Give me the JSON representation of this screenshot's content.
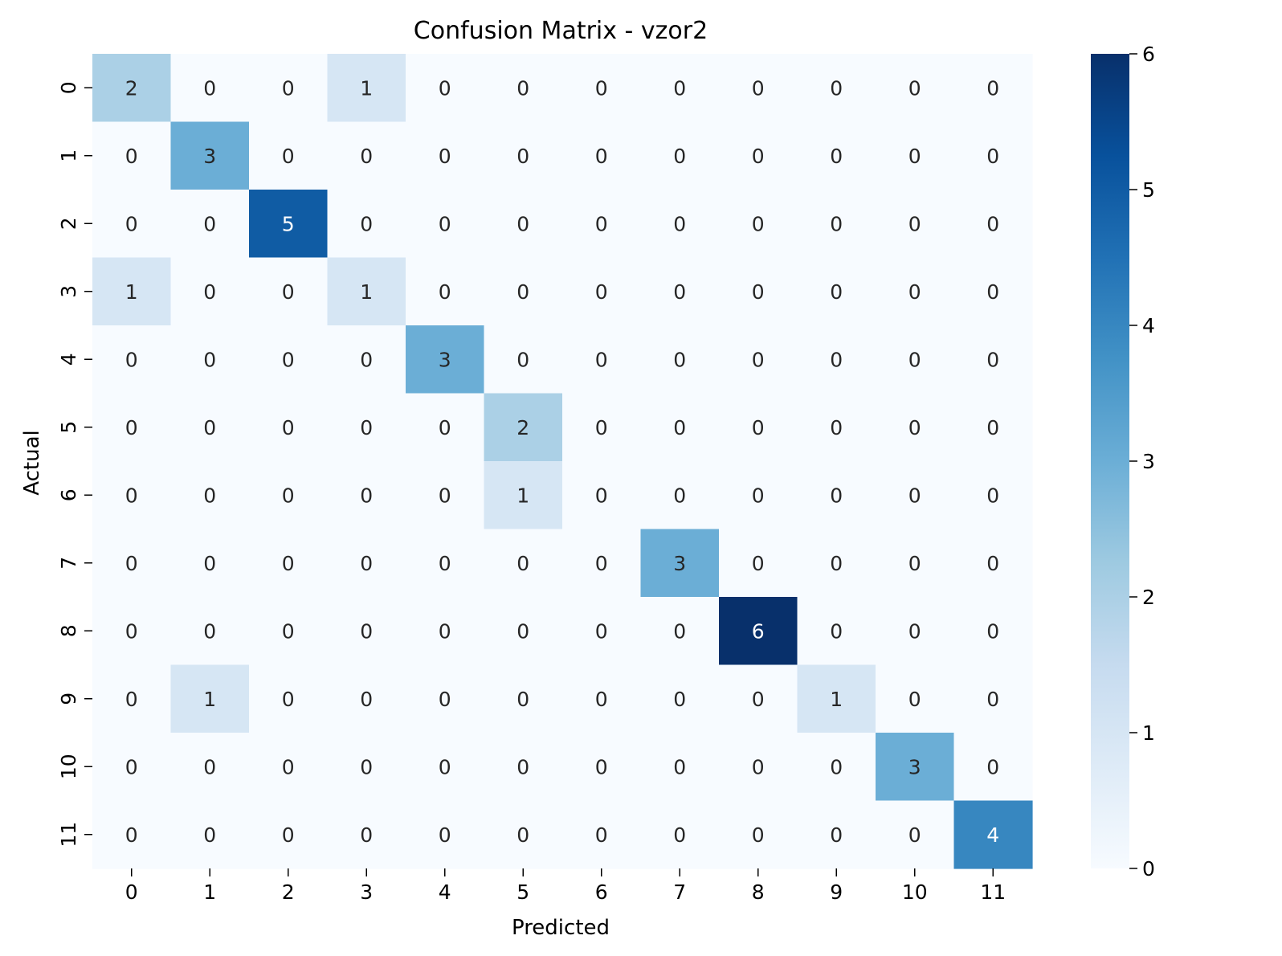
{
  "chart_data": {
    "type": "heatmap",
    "title": "Confusion Matrix - vzor2",
    "xlabel": "Predicted",
    "ylabel": "Actual",
    "x_categories": [
      "0",
      "1",
      "2",
      "3",
      "4",
      "5",
      "6",
      "7",
      "8",
      "9",
      "10",
      "11"
    ],
    "y_categories": [
      "0",
      "1",
      "2",
      "3",
      "4",
      "5",
      "6",
      "7",
      "8",
      "9",
      "10",
      "11"
    ],
    "matrix": [
      [
        2,
        0,
        0,
        1,
        0,
        0,
        0,
        0,
        0,
        0,
        0,
        0
      ],
      [
        0,
        3,
        0,
        0,
        0,
        0,
        0,
        0,
        0,
        0,
        0,
        0
      ],
      [
        0,
        0,
        5,
        0,
        0,
        0,
        0,
        0,
        0,
        0,
        0,
        0
      ],
      [
        1,
        0,
        0,
        1,
        0,
        0,
        0,
        0,
        0,
        0,
        0,
        0
      ],
      [
        0,
        0,
        0,
        0,
        3,
        0,
        0,
        0,
        0,
        0,
        0,
        0
      ],
      [
        0,
        0,
        0,
        0,
        0,
        2,
        0,
        0,
        0,
        0,
        0,
        0
      ],
      [
        0,
        0,
        0,
        0,
        0,
        1,
        0,
        0,
        0,
        0,
        0,
        0
      ],
      [
        0,
        0,
        0,
        0,
        0,
        0,
        0,
        3,
        0,
        0,
        0,
        0
      ],
      [
        0,
        0,
        0,
        0,
        0,
        0,
        0,
        0,
        6,
        0,
        0,
        0
      ],
      [
        0,
        1,
        0,
        0,
        0,
        0,
        0,
        0,
        0,
        1,
        0,
        0
      ],
      [
        0,
        0,
        0,
        0,
        0,
        0,
        0,
        0,
        0,
        0,
        3,
        0
      ],
      [
        0,
        0,
        0,
        0,
        0,
        0,
        0,
        0,
        0,
        0,
        0,
        4
      ]
    ],
    "colorbar": {
      "range": [
        0,
        6
      ],
      "ticks": [
        "0",
        "1",
        "2",
        "3",
        "4",
        "5",
        "6"
      ]
    },
    "colormap": "Blues",
    "colormap_stops": [
      "#f7fbff",
      "#deebf7",
      "#c6dbef",
      "#9ecae1",
      "#6baed6",
      "#4292c6",
      "#2171b5",
      "#08519c",
      "#08306b"
    ],
    "text_color_dark": "#262626",
    "text_color_light": "#ffffff"
  }
}
